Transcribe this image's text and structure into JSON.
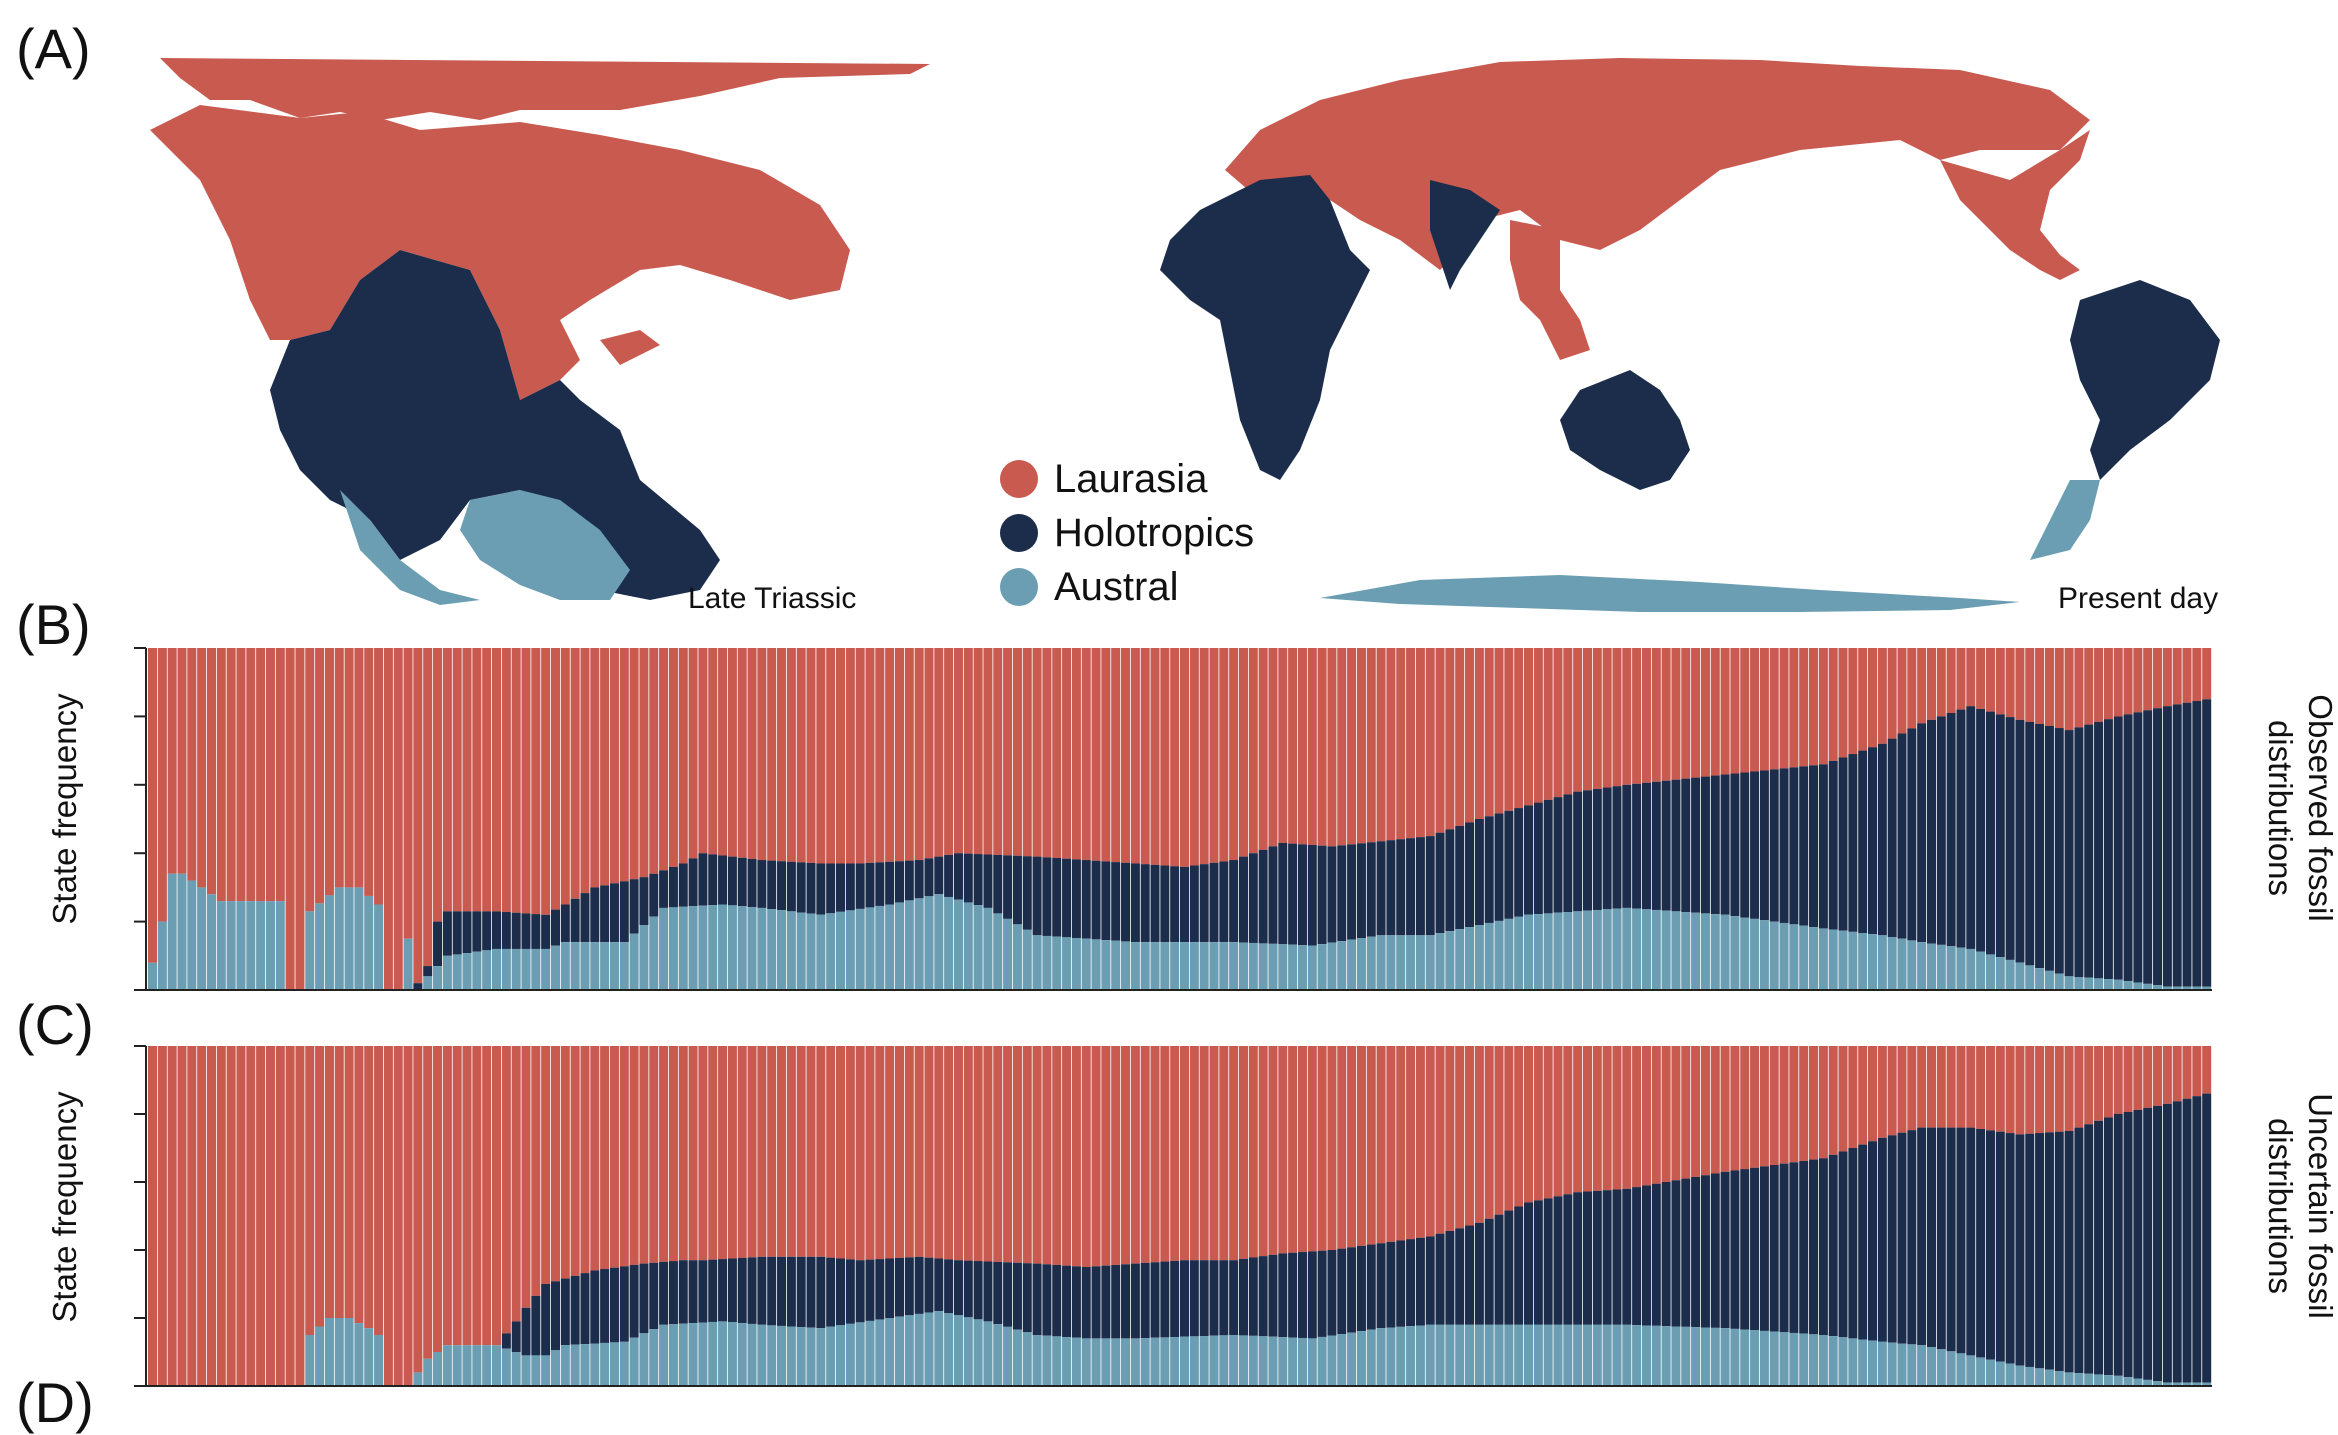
{
  "colors": {
    "laurasia": "#c85a50",
    "holotropics": "#1c2d4b",
    "austral": "#6b9eb2"
  },
  "panels": {
    "a": "(A)",
    "b": "(B)",
    "c": "(C)",
    "d": "(D)"
  },
  "maps": {
    "left_label": "Late Triassic",
    "right_label": "Present day"
  },
  "legend": [
    {
      "label": "Laurasia",
      "color": "#c85a50"
    },
    {
      "label": "Holotropics",
      "color": "#1c2d4b"
    },
    {
      "label": "Austral",
      "color": "#6b9eb2"
    }
  ],
  "chart_data": [
    {
      "type": "bar",
      "stacked": true,
      "panel": "(B)",
      "ylabel": "State frequency",
      "side_label": [
        "Observed fossil",
        "distributions"
      ],
      "ylim": [
        0,
        1
      ],
      "series_order": [
        "Austral",
        "Holotropics",
        "Laurasia"
      ],
      "control_points": {
        "austral": [
          [
            0,
            0.08
          ],
          [
            1,
            0.2
          ],
          [
            2,
            0.34
          ],
          [
            3,
            0.34
          ],
          [
            5,
            0.3
          ],
          [
            7,
            0.26
          ],
          [
            13,
            0.26
          ],
          [
            14,
            0
          ],
          [
            15,
            0
          ],
          [
            16,
            0.23
          ],
          [
            19,
            0.3
          ],
          [
            21,
            0.3
          ],
          [
            23,
            0.25
          ],
          [
            24,
            0
          ],
          [
            25,
            0
          ],
          [
            26,
            0.15
          ],
          [
            27,
            0
          ],
          [
            28,
            0.04
          ],
          [
            30,
            0.1
          ],
          [
            35,
            0.12
          ],
          [
            40,
            0.12
          ],
          [
            42,
            0.14
          ],
          [
            48,
            0.14
          ],
          [
            52,
            0.24
          ],
          [
            58,
            0.25
          ],
          [
            62,
            0.24
          ],
          [
            68,
            0.22
          ],
          [
            75,
            0.25
          ],
          [
            80,
            0.28
          ],
          [
            85,
            0.24
          ],
          [
            90,
            0.16
          ],
          [
            95,
            0.15
          ],
          [
            100,
            0.14
          ],
          [
            110,
            0.14
          ],
          [
            118,
            0.13
          ],
          [
            125,
            0.16
          ],
          [
            130,
            0.16
          ],
          [
            140,
            0.22
          ],
          [
            150,
            0.24
          ],
          [
            160,
            0.22
          ],
          [
            170,
            0.18
          ],
          [
            176,
            0.16
          ],
          [
            180,
            0.14
          ],
          [
            185,
            0.12
          ],
          [
            190,
            0.08
          ],
          [
            195,
            0.04
          ],
          [
            200,
            0.03
          ],
          [
            205,
            0.01
          ],
          [
            209,
            0.01
          ]
        ],
        "holotropics": [
          [
            0,
            0.08
          ],
          [
            1,
            0.2
          ],
          [
            2,
            0.34
          ],
          [
            3,
            0.34
          ],
          [
            5,
            0.3
          ],
          [
            7,
            0.26
          ],
          [
            13,
            0.26
          ],
          [
            14,
            0
          ],
          [
            15,
            0
          ],
          [
            16,
            0.23
          ],
          [
            19,
            0.3
          ],
          [
            21,
            0.3
          ],
          [
            23,
            0.25
          ],
          [
            24,
            0
          ],
          [
            25,
            0
          ],
          [
            26,
            0.15
          ],
          [
            27,
            0.02
          ],
          [
            28,
            0.07
          ],
          [
            29,
            0.2
          ],
          [
            30,
            0.23
          ],
          [
            35,
            0.23
          ],
          [
            40,
            0.22
          ],
          [
            42,
            0.25
          ],
          [
            45,
            0.3
          ],
          [
            50,
            0.33
          ],
          [
            54,
            0.37
          ],
          [
            56,
            0.4
          ],
          [
            62,
            0.38
          ],
          [
            68,
            0.37
          ],
          [
            72,
            0.37
          ],
          [
            78,
            0.38
          ],
          [
            82,
            0.4
          ],
          [
            90,
            0.39
          ],
          [
            95,
            0.38
          ],
          [
            100,
            0.37
          ],
          [
            105,
            0.36
          ],
          [
            110,
            0.38
          ],
          [
            115,
            0.43
          ],
          [
            120,
            0.42
          ],
          [
            130,
            0.45
          ],
          [
            135,
            0.5
          ],
          [
            140,
            0.54
          ],
          [
            145,
            0.58
          ],
          [
            150,
            0.6
          ],
          [
            160,
            0.63
          ],
          [
            170,
            0.66
          ],
          [
            176,
            0.72
          ],
          [
            180,
            0.78
          ],
          [
            185,
            0.83
          ],
          [
            190,
            0.79
          ],
          [
            195,
            0.76
          ],
          [
            200,
            0.8
          ],
          [
            205,
            0.83
          ],
          [
            209,
            0.85
          ]
        ]
      }
    },
    {
      "type": "bar",
      "stacked": true,
      "panel": "(C)",
      "ylabel": "State frequency",
      "side_label": [
        "Uncertain fossil",
        "distributions"
      ],
      "ylim": [
        0,
        1
      ],
      "series_order": [
        "Austral",
        "Holotropics",
        "Laurasia"
      ],
      "control_points": {
        "austral": [
          [
            0,
            0
          ],
          [
            15,
            0
          ],
          [
            16,
            0.15
          ],
          [
            18,
            0.2
          ],
          [
            20,
            0.2
          ],
          [
            22,
            0.17
          ],
          [
            23,
            0.15
          ],
          [
            24,
            0
          ],
          [
            26,
            0
          ],
          [
            28,
            0.08
          ],
          [
            30,
            0.12
          ],
          [
            35,
            0.12
          ],
          [
            37,
            0.1
          ],
          [
            38,
            0.09
          ],
          [
            40,
            0.09
          ],
          [
            42,
            0.12
          ],
          [
            48,
            0.13
          ],
          [
            52,
            0.18
          ],
          [
            58,
            0.19
          ],
          [
            62,
            0.18
          ],
          [
            68,
            0.17
          ],
          [
            75,
            0.2
          ],
          [
            80,
            0.22
          ],
          [
            85,
            0.19
          ],
          [
            90,
            0.15
          ],
          [
            95,
            0.14
          ],
          [
            100,
            0.14
          ],
          [
            110,
            0.15
          ],
          [
            118,
            0.14
          ],
          [
            125,
            0.17
          ],
          [
            130,
            0.18
          ],
          [
            140,
            0.18
          ],
          [
            150,
            0.18
          ],
          [
            160,
            0.17
          ],
          [
            170,
            0.15
          ],
          [
            176,
            0.13
          ],
          [
            180,
            0.12
          ],
          [
            185,
            0.09
          ],
          [
            190,
            0.06
          ],
          [
            195,
            0.04
          ],
          [
            200,
            0.03
          ],
          [
            205,
            0.01
          ],
          [
            209,
            0.01
          ]
        ],
        "holotropics": [
          [
            0,
            0
          ],
          [
            15,
            0
          ],
          [
            16,
            0.15
          ],
          [
            18,
            0.2
          ],
          [
            20,
            0.2
          ],
          [
            22,
            0.17
          ],
          [
            23,
            0.15
          ],
          [
            24,
            0
          ],
          [
            26,
            0
          ],
          [
            28,
            0.08
          ],
          [
            30,
            0.12
          ],
          [
            35,
            0.12
          ],
          [
            37,
            0.19
          ],
          [
            38,
            0.23
          ],
          [
            40,
            0.3
          ],
          [
            45,
            0.34
          ],
          [
            50,
            0.36
          ],
          [
            54,
            0.37
          ],
          [
            56,
            0.37
          ],
          [
            62,
            0.38
          ],
          [
            68,
            0.38
          ],
          [
            72,
            0.37
          ],
          [
            78,
            0.38
          ],
          [
            82,
            0.37
          ],
          [
            90,
            0.36
          ],
          [
            95,
            0.35
          ],
          [
            100,
            0.36
          ],
          [
            105,
            0.37
          ],
          [
            110,
            0.37
          ],
          [
            115,
            0.39
          ],
          [
            120,
            0.4
          ],
          [
            130,
            0.44
          ],
          [
            135,
            0.48
          ],
          [
            140,
            0.54
          ],
          [
            145,
            0.57
          ],
          [
            150,
            0.58
          ],
          [
            160,
            0.63
          ],
          [
            170,
            0.67
          ],
          [
            176,
            0.73
          ],
          [
            180,
            0.76
          ],
          [
            185,
            0.76
          ],
          [
            190,
            0.74
          ],
          [
            195,
            0.75
          ],
          [
            200,
            0.8
          ],
          [
            205,
            0.83
          ],
          [
            209,
            0.86
          ]
        ]
      }
    }
  ]
}
